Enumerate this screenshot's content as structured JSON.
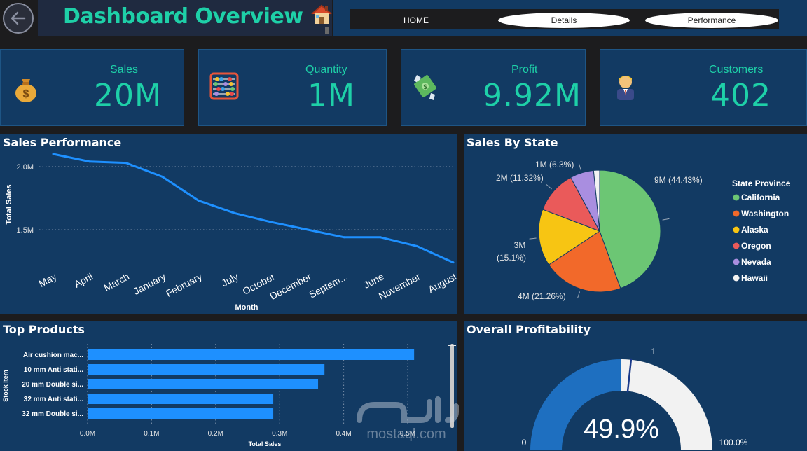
{
  "header": {
    "title": "Dashboard Overview",
    "nav": {
      "home": "HOME",
      "details": "Details",
      "performance": "Performance"
    }
  },
  "kpis": [
    {
      "label": "Sales",
      "value": "20M",
      "icon": "money-bag-icon"
    },
    {
      "label": "Quantity",
      "value": "1M",
      "icon": "abacus-icon"
    },
    {
      "label": "Profit",
      "value": "9.92M",
      "icon": "money-wings-icon"
    },
    {
      "label": "Customers",
      "value": "402",
      "icon": "businessman-icon"
    }
  ],
  "panels": {
    "sales_performance": "Sales Performance",
    "sales_by_state": "Sales By State",
    "top_products": "Top Products",
    "overall_profitability": "Overall Profitability"
  },
  "colors": {
    "teal": "#1ed0a8",
    "panel": "#123a63",
    "line": "#1e90ff"
  },
  "watermark": {
    "text": "mostaql.com"
  },
  "chart_data": [
    {
      "type": "line",
      "title": "Sales Performance",
      "xlabel": "Month",
      "ylabel": "Total Sales",
      "categories": [
        "May",
        "April",
        "March",
        "January",
        "February",
        "July",
        "October",
        "December",
        "Septem...",
        "June",
        "November",
        "August"
      ],
      "values": [
        2.1,
        2.04,
        2.03,
        1.92,
        1.73,
        1.63,
        1.56,
        1.5,
        1.44,
        1.44,
        1.37,
        1.24
      ],
      "yticks": [
        "1.5M",
        "2.0M"
      ],
      "ylim": [
        1.2,
        2.2
      ],
      "grid": true
    },
    {
      "type": "pie",
      "title": "Sales By State",
      "legend_title": "State Province",
      "legend_position": "right",
      "slices": [
        {
          "name": "California",
          "value": 44.43,
          "label": "9M (44.43%)",
          "color": "#6cc674"
        },
        {
          "name": "Washington",
          "value": 21.26,
          "label": "4M (21.26%)",
          "color": "#f2692a"
        },
        {
          "name": "Alaska",
          "value": 15.1,
          "label": "3M (15.1%)",
          "color": "#f7c513"
        },
        {
          "name": "Oregon",
          "value": 11.32,
          "label": "2M (11.32%)",
          "color": "#ea5a5a"
        },
        {
          "name": "Nevada",
          "value": 6.3,
          "label": "1M (6.3%)",
          "color": "#a98ee0"
        },
        {
          "name": "Hawaii",
          "value": 1.59,
          "label": "",
          "color": "#f2f2f2"
        }
      ]
    },
    {
      "type": "bar",
      "orientation": "horizontal",
      "title": "Top Products",
      "xlabel": "Total Sales",
      "ylabel": "Stock Item",
      "categories": [
        "Air cushion mac...",
        "10 mm Anti stati...",
        "20 mm Double si...",
        "32 mm Anti stati...",
        "32 mm Double si..."
      ],
      "values": [
        0.51,
        0.37,
        0.36,
        0.29,
        0.29
      ],
      "xticks": [
        "0.0M",
        "0.1M",
        "0.2M",
        "0.3M",
        "0.4M",
        "0.5M"
      ],
      "xlim": [
        0,
        0.5
      ],
      "grid": true
    },
    {
      "type": "gauge",
      "title": "Overall Profitability",
      "value": 49.9,
      "value_label": "49.9%",
      "target": 1,
      "min_label": "0",
      "max_label": "100.0%"
    }
  ]
}
